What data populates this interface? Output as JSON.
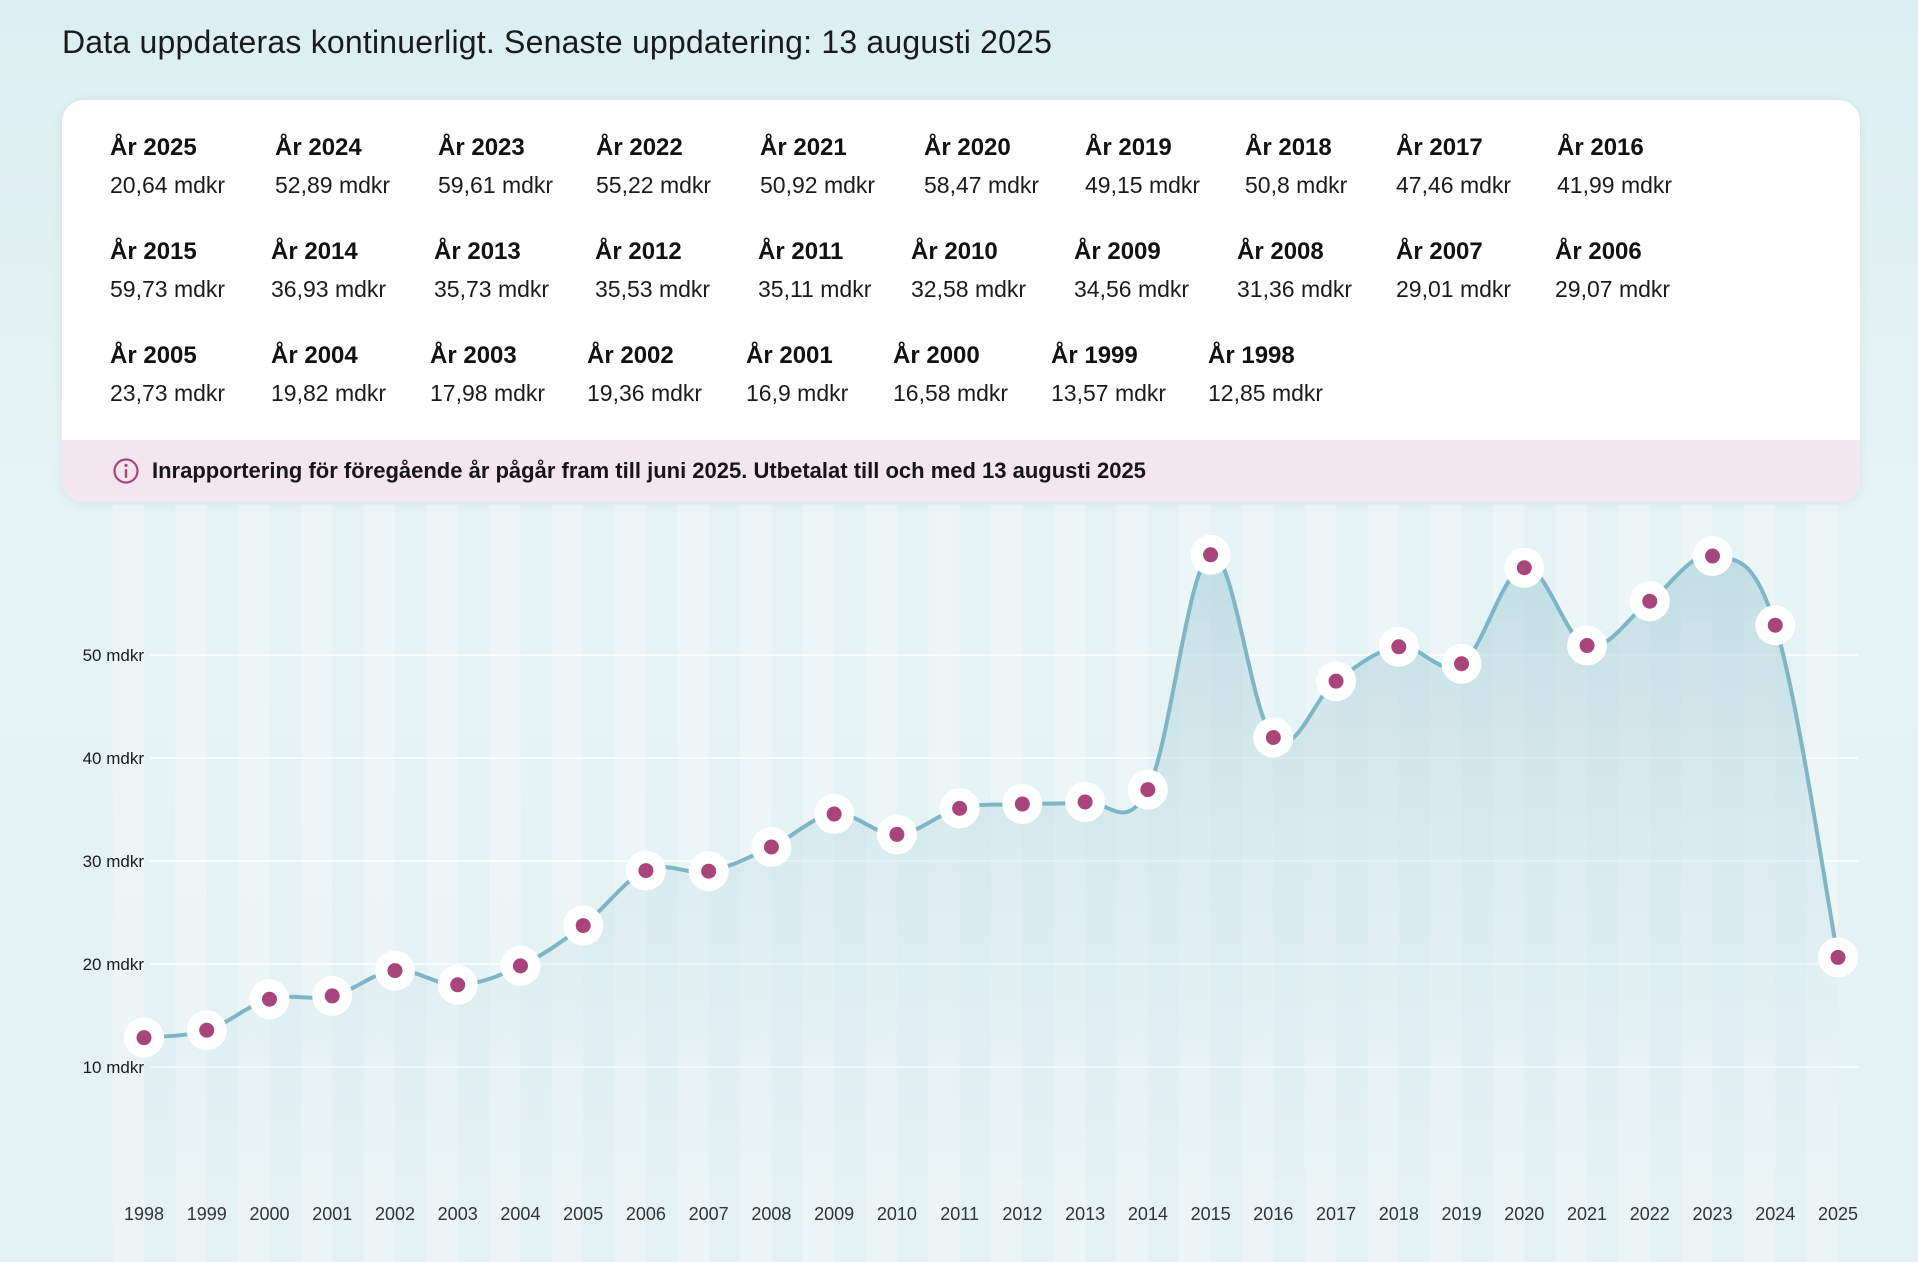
{
  "header": {
    "update_text": "Data uppdateras kontinuerligt. Senaste uppdatering: 13 augusti 2025"
  },
  "summary": {
    "rows": [
      [
        {
          "label": "År 2025",
          "value": "20,64 mdkr"
        },
        {
          "label": "År 2024",
          "value": "52,89 mdkr"
        },
        {
          "label": "År 2023",
          "value": "59,61 mdkr"
        },
        {
          "label": "År 2022",
          "value": "55,22 mdkr"
        },
        {
          "label": "År 2021",
          "value": "50,92 mdkr"
        },
        {
          "label": "År 2020",
          "value": "58,47 mdkr"
        },
        {
          "label": "År 2019",
          "value": "49,15 mdkr"
        },
        {
          "label": "År 2018",
          "value": "50,8 mdkr"
        },
        {
          "label": "År 2017",
          "value": "47,46 mdkr"
        },
        {
          "label": "År 2016",
          "value": "41,99 mdkr"
        }
      ],
      [
        {
          "label": "År 2015",
          "value": "59,73 mdkr"
        },
        {
          "label": "År 2014",
          "value": "36,93 mdkr"
        },
        {
          "label": "År 2013",
          "value": "35,73 mdkr"
        },
        {
          "label": "År 2012",
          "value": "35,53 mdkr"
        },
        {
          "label": "År 2011",
          "value": "35,11 mdkr"
        },
        {
          "label": "År 2010",
          "value": "32,58 mdkr"
        },
        {
          "label": "År 2009",
          "value": "34,56 mdkr"
        },
        {
          "label": "År 2008",
          "value": "31,36 mdkr"
        },
        {
          "label": "År 2007",
          "value": "29,01 mdkr"
        },
        {
          "label": "År 2006",
          "value": "29,07 mdkr"
        }
      ],
      [
        {
          "label": "År 2005",
          "value": "23,73 mdkr"
        },
        {
          "label": "År 2004",
          "value": "19,82 mdkr"
        },
        {
          "label": "År 2003",
          "value": "17,98 mdkr"
        },
        {
          "label": "År 2002",
          "value": "19,36 mdkr"
        },
        {
          "label": "År 2001",
          "value": "16,9 mdkr"
        },
        {
          "label": "År 2000",
          "value": "16,58 mdkr"
        },
        {
          "label": "År 1999",
          "value": "13,57 mdkr"
        },
        {
          "label": "År 1998",
          "value": "12,85 mdkr"
        }
      ]
    ]
  },
  "notice": {
    "icon": "info-icon",
    "text": "Inrapportering för föregående år pågår fram till juni 2025.  Utbetalat till och med 13 augusti 2025"
  },
  "colors": {
    "line": "#7fb6c6",
    "area": "#bcdbe3",
    "point": "#a8457a",
    "notice_bg": "#f3e7ef"
  },
  "chart_data": {
    "type": "area",
    "x": [
      "1998",
      "1999",
      "2000",
      "2001",
      "2002",
      "2003",
      "2004",
      "2005",
      "2006",
      "2007",
      "2008",
      "2009",
      "2010",
      "2011",
      "2012",
      "2013",
      "2014",
      "2015",
      "2016",
      "2017",
      "2018",
      "2019",
      "2020",
      "2021",
      "2022",
      "2023",
      "2024",
      "2025"
    ],
    "values": [
      12.85,
      13.57,
      16.58,
      16.9,
      19.36,
      17.98,
      19.82,
      23.73,
      29.07,
      29.01,
      31.36,
      34.56,
      32.58,
      35.11,
      35.53,
      35.73,
      36.93,
      59.73,
      41.99,
      47.46,
      50.8,
      49.15,
      58.47,
      50.92,
      55.22,
      59.61,
      52.89,
      20.64
    ],
    "y_ticks": [
      10,
      20,
      30,
      40,
      50
    ],
    "y_tick_labels": [
      "10 mdkr",
      "20 mdkr",
      "30 mdkr",
      "40 mdkr",
      "50 mdkr"
    ],
    "ylim": [
      0,
      60
    ],
    "grid": true,
    "xlabel": "",
    "ylabel": ""
  }
}
